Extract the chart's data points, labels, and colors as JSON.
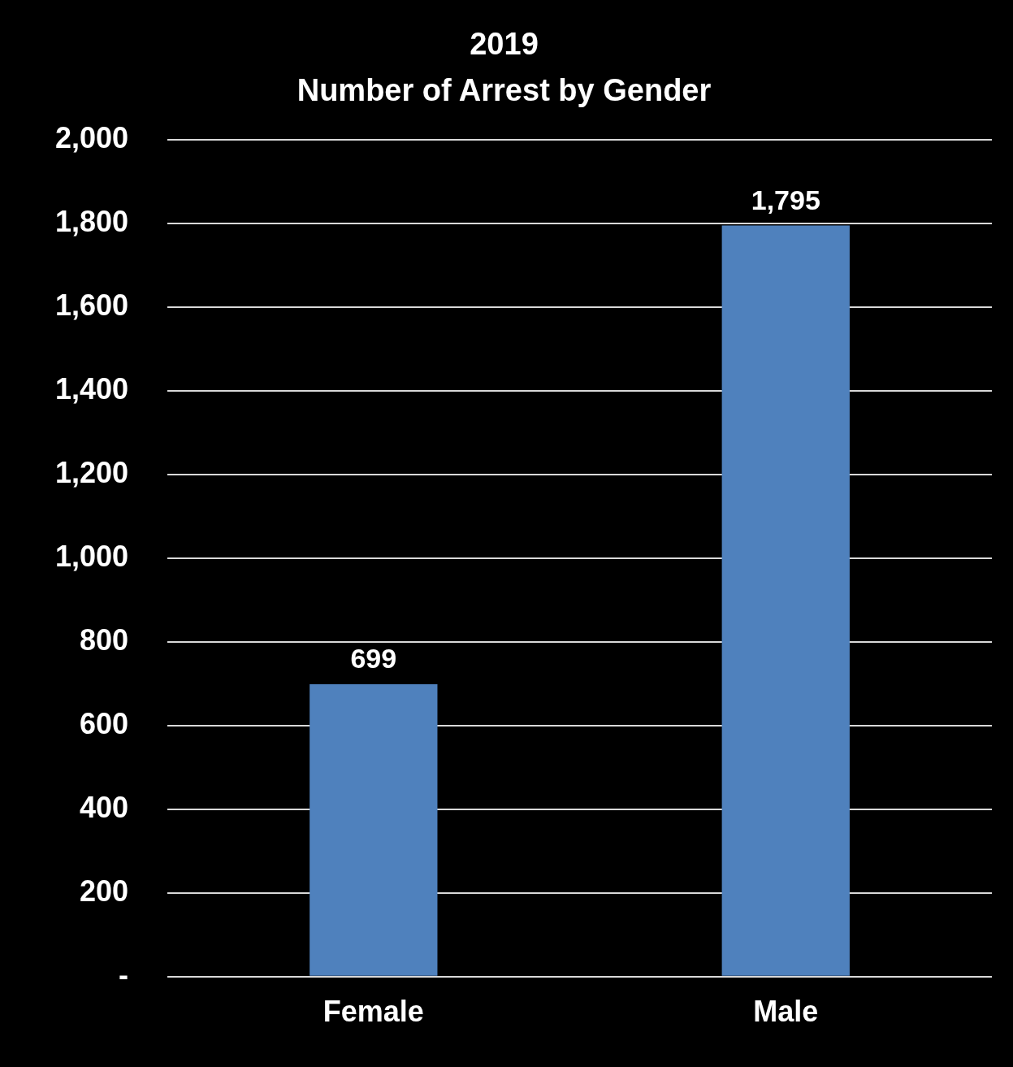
{
  "chart_data": {
    "type": "bar",
    "title": "2019\nNumber of Arrest by Gender",
    "categories": [
      "Female",
      "Male"
    ],
    "values": [
      699,
      1795
    ],
    "value_labels": [
      "699",
      "1,795"
    ],
    "color": "#4f81bd",
    "ylim": [
      0,
      2000
    ],
    "yticks": [
      {
        "value": 0,
        "label": "-"
      },
      {
        "value": 200,
        "label": "200"
      },
      {
        "value": 400,
        "label": "400"
      },
      {
        "value": 600,
        "label": "600"
      },
      {
        "value": 800,
        "label": "800"
      },
      {
        "value": 1000,
        "label": "1,000"
      },
      {
        "value": 1200,
        "label": "1,200"
      },
      {
        "value": 1400,
        "label": "1,400"
      },
      {
        "value": 1600,
        "label": "1,600"
      },
      {
        "value": 1800,
        "label": "1,800"
      },
      {
        "value": 2000,
        "label": "2,000"
      }
    ],
    "grid": "y",
    "legend": false
  }
}
